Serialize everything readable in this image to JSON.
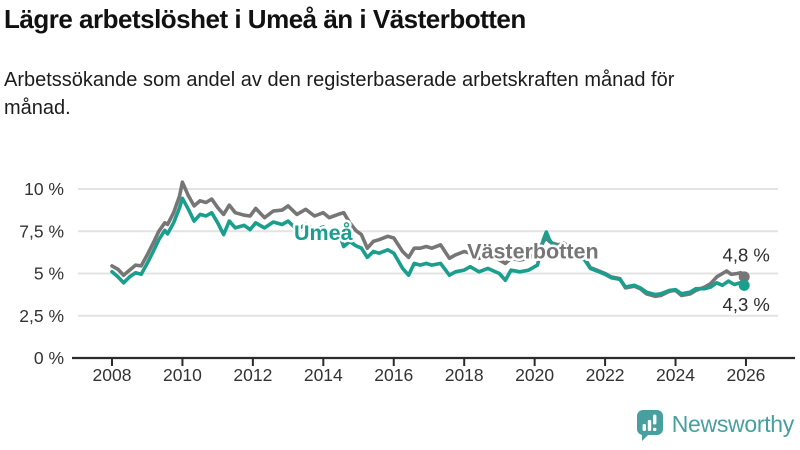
{
  "header": {
    "title": "Lägre arbetslöshet i Umeå än i Västerbotten",
    "subtitle": "Arbetssökande som andel av den registerbaserade arbetskraften månad för månad."
  },
  "footer": {
    "brand": "Newsworthy"
  },
  "icons": {
    "brand_logo": "speech-bubble-bar-chart-exclamation-icon"
  },
  "colors": {
    "umea_teal": "#1a9e8d",
    "vasterbotten_gray": "#767676",
    "gridline": "#e3e3e3",
    "axis": "#2b2b2b",
    "tick_label": "#333333",
    "value_label": "#2d2d2d",
    "brand_teal": "#47a09f",
    "background": "#ffffff"
  },
  "chart_data": {
    "type": "line",
    "title": "Lägre arbetslöshet i Umeå än i Västerbotten",
    "xlabel": "",
    "ylabel": "",
    "xlim": [
      2007.0,
      2026.9
    ],
    "ylim": [
      0,
      10.8
    ],
    "grid": true,
    "legend_position": "inline-labels",
    "x_ticks": [
      2008,
      2010,
      2012,
      2014,
      2016,
      2018,
      2020,
      2022,
      2024,
      2026
    ],
    "x_tick_labels": [
      "2008",
      "2010",
      "2012",
      "2014",
      "2016",
      "2018",
      "2020",
      "2022",
      "2024",
      "2026"
    ],
    "y_ticks": [
      0,
      2.5,
      5,
      7.5,
      10
    ],
    "y_tick_labels": [
      "0 %",
      "2,5 %",
      "5 %",
      "7,5 %",
      "10 %"
    ],
    "series": [
      {
        "name": "Västerbotten",
        "color": "#767676",
        "end_label": "4,8 %",
        "end_value": 4.8,
        "end_label_position": "above",
        "name_label": {
          "x": 2019.95,
          "y": 6.3
        },
        "points": [
          [
            2008.0,
            5.45
          ],
          [
            2008.17,
            5.25
          ],
          [
            2008.33,
            4.9
          ],
          [
            2008.5,
            5.2
          ],
          [
            2008.67,
            5.5
          ],
          [
            2008.83,
            5.45
          ],
          [
            2009.0,
            6.1
          ],
          [
            2009.17,
            6.8
          ],
          [
            2009.33,
            7.5
          ],
          [
            2009.5,
            8.0
          ],
          [
            2009.58,
            7.9
          ],
          [
            2009.75,
            8.6
          ],
          [
            2009.92,
            9.6
          ],
          [
            2010.0,
            10.4
          ],
          [
            2010.17,
            9.6
          ],
          [
            2010.33,
            9.0
          ],
          [
            2010.5,
            9.3
          ],
          [
            2010.67,
            9.2
          ],
          [
            2010.83,
            9.4
          ],
          [
            2011.0,
            8.9
          ],
          [
            2011.17,
            8.5
          ],
          [
            2011.33,
            9.05
          ],
          [
            2011.5,
            8.6
          ],
          [
            2011.75,
            8.45
          ],
          [
            2011.92,
            8.4
          ],
          [
            2012.08,
            8.85
          ],
          [
            2012.33,
            8.3
          ],
          [
            2012.58,
            8.7
          ],
          [
            2012.83,
            8.75
          ],
          [
            2013.0,
            9.0
          ],
          [
            2013.25,
            8.5
          ],
          [
            2013.5,
            8.8
          ],
          [
            2013.75,
            8.4
          ],
          [
            2014.0,
            8.6
          ],
          [
            2014.17,
            8.3
          ],
          [
            2014.42,
            8.5
          ],
          [
            2014.58,
            8.6
          ],
          [
            2014.75,
            8.0
          ],
          [
            2014.92,
            7.55
          ],
          [
            2015.08,
            7.3
          ],
          [
            2015.25,
            6.5
          ],
          [
            2015.42,
            6.9
          ],
          [
            2015.58,
            7.0
          ],
          [
            2015.83,
            7.2
          ],
          [
            2016.0,
            7.1
          ],
          [
            2016.25,
            6.3
          ],
          [
            2016.42,
            5.95
          ],
          [
            2016.58,
            6.5
          ],
          [
            2016.75,
            6.5
          ],
          [
            2016.92,
            6.6
          ],
          [
            2017.08,
            6.5
          ],
          [
            2017.33,
            6.7
          ],
          [
            2017.58,
            5.9
          ],
          [
            2017.75,
            6.1
          ],
          [
            2018.0,
            6.3
          ],
          [
            2018.17,
            6.2
          ],
          [
            2018.42,
            5.9
          ],
          [
            2018.67,
            6.1
          ],
          [
            2019.0,
            5.8
          ],
          [
            2019.17,
            5.6
          ],
          [
            2019.33,
            5.9
          ],
          [
            2019.58,
            5.8
          ],
          [
            2019.83,
            5.9
          ],
          [
            2020.08,
            6.3
          ],
          [
            2020.25,
            6.9
          ],
          [
            2020.33,
            7.1
          ],
          [
            2020.42,
            6.9
          ],
          [
            2020.5,
            6.8
          ],
          [
            2020.67,
            6.7
          ],
          [
            2020.83,
            6.8
          ],
          [
            2021.0,
            6.55
          ],
          [
            2021.17,
            6.2
          ],
          [
            2021.42,
            5.9
          ],
          [
            2021.58,
            5.35
          ],
          [
            2021.83,
            5.15
          ],
          [
            2022.0,
            5.0
          ],
          [
            2022.17,
            4.8
          ],
          [
            2022.42,
            4.7
          ],
          [
            2022.58,
            4.15
          ],
          [
            2022.83,
            4.25
          ],
          [
            2023.0,
            4.1
          ],
          [
            2023.17,
            3.8
          ],
          [
            2023.42,
            3.65
          ],
          [
            2023.58,
            3.7
          ],
          [
            2023.83,
            3.95
          ],
          [
            2024.0,
            4.0
          ],
          [
            2024.17,
            3.7
          ],
          [
            2024.42,
            3.8
          ],
          [
            2024.58,
            4.0
          ],
          [
            2024.83,
            4.2
          ],
          [
            2025.0,
            4.4
          ],
          [
            2025.17,
            4.8
          ],
          [
            2025.33,
            5.0
          ],
          [
            2025.45,
            5.15
          ],
          [
            2025.58,
            4.95
          ],
          [
            2025.75,
            5.0
          ],
          [
            2025.85,
            5.05
          ],
          [
            2025.95,
            4.8
          ]
        ]
      },
      {
        "name": "Umeå",
        "color": "#1a9e8d",
        "end_label": "4,3 %",
        "end_value": 4.3,
        "end_label_position": "below",
        "name_label": {
          "x": 2014.0,
          "y": 7.4
        },
        "points": [
          [
            2008.0,
            5.1
          ],
          [
            2008.17,
            4.8
          ],
          [
            2008.33,
            4.45
          ],
          [
            2008.5,
            4.8
          ],
          [
            2008.67,
            5.05
          ],
          [
            2008.83,
            4.95
          ],
          [
            2009.0,
            5.6
          ],
          [
            2009.17,
            6.3
          ],
          [
            2009.33,
            7.0
          ],
          [
            2009.5,
            7.55
          ],
          [
            2009.58,
            7.35
          ],
          [
            2009.75,
            8.0
          ],
          [
            2009.92,
            8.9
          ],
          [
            2010.0,
            9.45
          ],
          [
            2010.17,
            8.8
          ],
          [
            2010.33,
            8.1
          ],
          [
            2010.5,
            8.5
          ],
          [
            2010.67,
            8.4
          ],
          [
            2010.83,
            8.6
          ],
          [
            2011.0,
            8.0
          ],
          [
            2011.17,
            7.3
          ],
          [
            2011.33,
            8.1
          ],
          [
            2011.5,
            7.7
          ],
          [
            2011.75,
            7.85
          ],
          [
            2011.92,
            7.6
          ],
          [
            2012.08,
            8.0
          ],
          [
            2012.33,
            7.7
          ],
          [
            2012.58,
            8.05
          ],
          [
            2012.83,
            7.9
          ],
          [
            2013.0,
            8.1
          ],
          [
            2013.25,
            7.6
          ],
          [
            2013.5,
            7.9
          ],
          [
            2013.75,
            7.6
          ],
          [
            2014.0,
            7.75
          ],
          [
            2014.17,
            7.3
          ],
          [
            2014.42,
            7.55
          ],
          [
            2014.58,
            6.6
          ],
          [
            2014.75,
            6.9
          ],
          [
            2014.92,
            6.65
          ],
          [
            2015.08,
            6.5
          ],
          [
            2015.25,
            5.95
          ],
          [
            2015.42,
            6.3
          ],
          [
            2015.58,
            6.2
          ],
          [
            2015.83,
            6.4
          ],
          [
            2016.0,
            6.2
          ],
          [
            2016.25,
            5.3
          ],
          [
            2016.42,
            4.9
          ],
          [
            2016.58,
            5.6
          ],
          [
            2016.75,
            5.5
          ],
          [
            2016.92,
            5.6
          ],
          [
            2017.08,
            5.5
          ],
          [
            2017.33,
            5.6
          ],
          [
            2017.58,
            4.9
          ],
          [
            2017.75,
            5.1
          ],
          [
            2018.0,
            5.2
          ],
          [
            2018.17,
            5.4
          ],
          [
            2018.42,
            5.1
          ],
          [
            2018.67,
            5.3
          ],
          [
            2019.0,
            5.0
          ],
          [
            2019.17,
            4.6
          ],
          [
            2019.33,
            5.2
          ],
          [
            2019.58,
            5.1
          ],
          [
            2019.83,
            5.2
          ],
          [
            2020.08,
            5.5
          ],
          [
            2020.25,
            7.0
          ],
          [
            2020.33,
            7.45
          ],
          [
            2020.42,
            7.0
          ],
          [
            2020.5,
            6.75
          ],
          [
            2020.67,
            6.55
          ],
          [
            2020.83,
            6.7
          ],
          [
            2021.0,
            6.4
          ],
          [
            2021.17,
            6.1
          ],
          [
            2021.42,
            5.8
          ],
          [
            2021.58,
            5.3
          ],
          [
            2021.83,
            5.1
          ],
          [
            2022.0,
            4.95
          ],
          [
            2022.17,
            4.75
          ],
          [
            2022.42,
            4.65
          ],
          [
            2022.58,
            4.2
          ],
          [
            2022.83,
            4.3
          ],
          [
            2023.0,
            4.15
          ],
          [
            2023.17,
            3.9
          ],
          [
            2023.42,
            3.75
          ],
          [
            2023.58,
            3.8
          ],
          [
            2023.83,
            4.0
          ],
          [
            2024.0,
            4.05
          ],
          [
            2024.17,
            3.8
          ],
          [
            2024.42,
            3.9
          ],
          [
            2024.58,
            4.1
          ],
          [
            2024.83,
            4.1
          ],
          [
            2025.0,
            4.2
          ],
          [
            2025.17,
            4.45
          ],
          [
            2025.33,
            4.3
          ],
          [
            2025.5,
            4.55
          ],
          [
            2025.67,
            4.35
          ],
          [
            2025.83,
            4.45
          ],
          [
            2025.95,
            4.3
          ]
        ]
      }
    ]
  }
}
